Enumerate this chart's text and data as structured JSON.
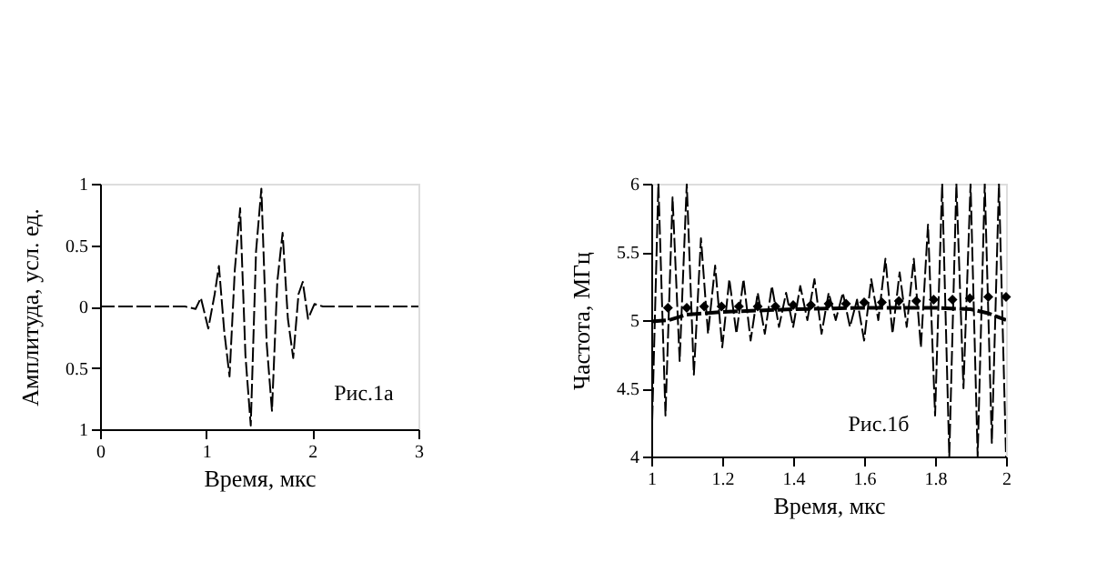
{
  "chart_data": [
    {
      "type": "line",
      "xlabel": "Время, мкс",
      "ylabel": "Амплитуда, усл. ед.",
      "xlim": [
        0,
        3
      ],
      "ylim": [
        -1,
        1
      ],
      "xticks": [
        0,
        1,
        2,
        3
      ],
      "yticks": [
        {
          "value": -1,
          "label": "1"
        },
        {
          "value": -0.5,
          "label": "0.5"
        },
        0,
        0.5,
        1
      ],
      "grid": false,
      "annotations": [
        "Рис.1а"
      ],
      "series": [
        {
          "color": "#000000",
          "line_style": "dashed",
          "x": [
            0,
            0.2,
            0.4,
            0.6,
            0.8,
            0.9,
            0.95,
            1.02,
            1.08,
            1.12,
            1.17,
            1.22,
            1.27,
            1.32,
            1.37,
            1.42,
            1.47,
            1.52,
            1.57,
            1.62,
            1.67,
            1.72,
            1.77,
            1.82,
            1.87,
            1.91,
            1.96,
            2.02,
            2.1,
            2.3,
            2.6,
            3.0
          ],
          "values": [
            0,
            0,
            0,
            0,
            0,
            -0.02,
            0.07,
            -0.18,
            0.1,
            0.33,
            -0.2,
            -0.57,
            0.3,
            0.8,
            -0.4,
            -0.97,
            0.45,
            0.96,
            -0.3,
            -0.85,
            0.2,
            0.6,
            -0.1,
            -0.42,
            0.1,
            0.2,
            -0.1,
            0.02,
            0,
            0,
            0,
            0
          ]
        }
      ]
    },
    {
      "type": "line",
      "xlabel": "Время, мкс",
      "ylabel": "Частота, МГц",
      "xlim": [
        1,
        2
      ],
      "ylim": [
        4,
        6
      ],
      "xticks": [
        1,
        1.2,
        1.4,
        1.6,
        1.8,
        2
      ],
      "yticks": [
        4,
        4.5,
        5,
        5.5,
        6
      ],
      "grid": false,
      "annotations": [
        "Рис.1б"
      ],
      "series": [
        {
          "color": "#000000",
          "line_style": "dashed",
          "x": [
            1.0,
            1.02,
            1.04,
            1.06,
            1.08,
            1.1,
            1.12,
            1.14,
            1.16,
            1.18,
            1.2,
            1.22,
            1.24,
            1.26,
            1.28,
            1.3,
            1.32,
            1.34,
            1.36,
            1.38,
            1.4,
            1.42,
            1.44,
            1.46,
            1.48,
            1.5,
            1.52,
            1.54,
            1.56,
            1.58,
            1.6,
            1.62,
            1.64,
            1.66,
            1.68,
            1.7,
            1.72,
            1.74,
            1.76,
            1.78,
            1.8,
            1.82,
            1.84,
            1.86,
            1.88,
            1.9,
            1.92,
            1.94,
            1.96,
            1.98,
            2.0
          ],
          "values": [
            4.0,
            6.0,
            4.3,
            5.9,
            4.7,
            6.0,
            4.6,
            5.6,
            4.9,
            5.4,
            4.8,
            5.3,
            4.9,
            5.3,
            4.85,
            5.2,
            4.9,
            5.25,
            4.95,
            5.2,
            4.95,
            5.25,
            5.0,
            5.3,
            4.9,
            5.2,
            5.0,
            5.2,
            4.95,
            5.15,
            4.85,
            5.3,
            5.0,
            5.45,
            4.9,
            5.35,
            4.95,
            5.45,
            4.8,
            5.7,
            4.3,
            6.0,
            4.0,
            6.0,
            4.5,
            6.0,
            4.0,
            6.0,
            4.1,
            6.0,
            4.0
          ]
        },
        {
          "color": "#000000",
          "type": "line",
          "line_style": "dashed",
          "x": [
            1.0,
            1.05,
            1.1,
            1.2,
            1.4,
            1.6,
            1.8,
            1.9,
            1.95,
            2.0
          ],
          "values": [
            4.99,
            5.0,
            5.04,
            5.06,
            5.08,
            5.09,
            5.09,
            5.08,
            5.05,
            5.0
          ]
        },
        {
          "color": "#000000",
          "type": "scatter",
          "marker": "diamond",
          "x": [
            1.047,
            1.1,
            1.149,
            1.198,
            1.247,
            1.3,
            1.35,
            1.4,
            1.45,
            1.5,
            1.549,
            1.6,
            1.65,
            1.698,
            1.747,
            1.796,
            1.849,
            1.898,
            1.95,
            2.0
          ],
          "values": [
            5.09,
            5.09,
            5.1,
            5.1,
            5.1,
            5.1,
            5.1,
            5.11,
            5.11,
            5.12,
            5.12,
            5.13,
            5.13,
            5.14,
            5.14,
            5.15,
            5.15,
            5.16,
            5.17,
            5.17
          ]
        }
      ]
    }
  ]
}
